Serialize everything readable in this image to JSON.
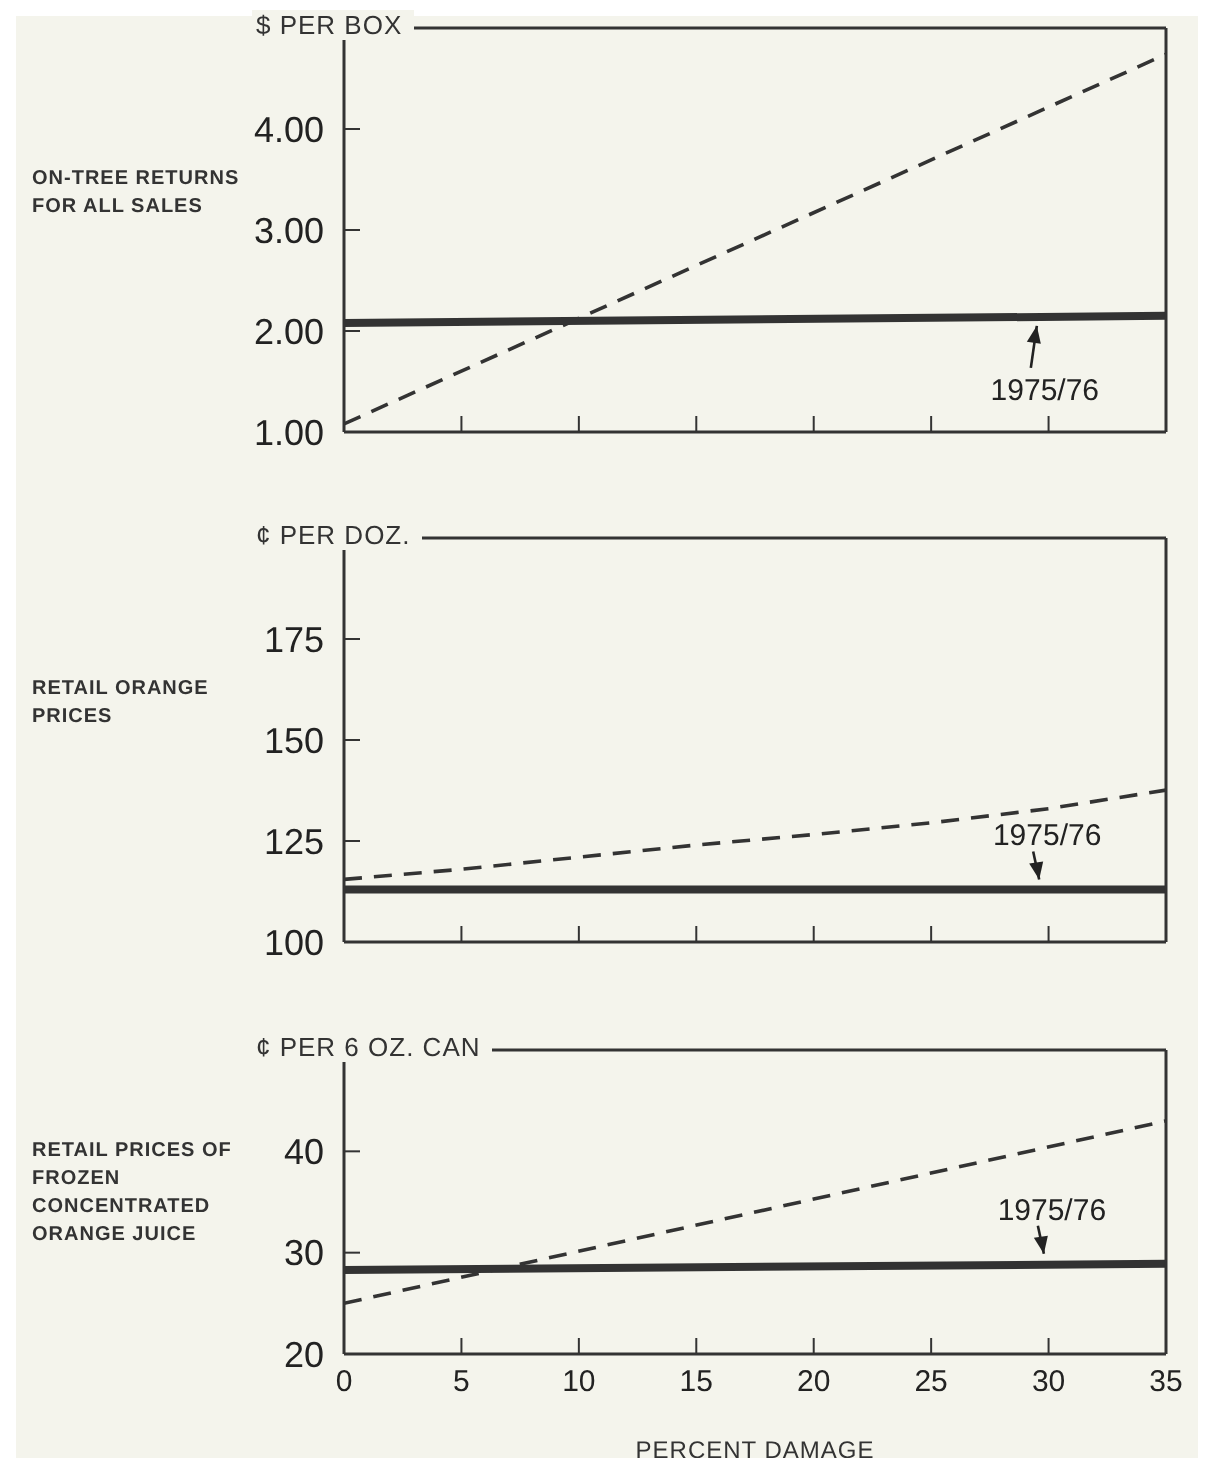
{
  "chart_data": [
    {
      "type": "line",
      "title": "ON-TREE RETURNS FOR ALL SALES",
      "ylabel": "$ PER BOX",
      "xlim": [
        0,
        35
      ],
      "xticks": [
        0,
        5,
        10,
        15,
        20,
        25,
        30,
        35
      ],
      "ylim": [
        1,
        5
      ],
      "yticks": [
        {
          "value": 1,
          "label": "1.00"
        },
        {
          "value": 2,
          "label": "2.00"
        },
        {
          "value": 3,
          "label": "3.00"
        },
        {
          "value": 4,
          "label": "4.00"
        }
      ],
      "tick_labels": "y",
      "grid": false,
      "marker": "none",
      "series": [
        {
          "color": "#333333",
          "line_style": "dashed",
          "x": [
            0,
            35
          ],
          "values": [
            1.08,
            4.74
          ]
        },
        {
          "color": "#333333",
          "line_style": "solid",
          "x": [
            0,
            35
          ],
          "values": [
            2.08,
            2.15
          ]
        }
      ],
      "annotations": [
        {
          "text": "1975/76",
          "x": 29.5,
          "y": 2.15
        }
      ]
    },
    {
      "type": "line",
      "title": "RETAIL ORANGE PRICES",
      "ylabel": "¢ PER DOZ.",
      "xlim": [
        0,
        35
      ],
      "xticks": [
        0,
        5,
        10,
        15,
        20,
        25,
        30,
        35
      ],
      "ylim": [
        100,
        200
      ],
      "yticks": [
        100,
        125,
        150,
        175
      ],
      "tick_labels": "y",
      "grid": false,
      "marker": "none",
      "series": [
        {
          "color": "#333333",
          "line_style": "dashed",
          "x": [
            0,
            5,
            10,
            15,
            20,
            25,
            30,
            35
          ],
          "values": [
            115.5,
            118,
            121,
            124,
            126.6,
            129.5,
            133,
            137.6
          ]
        },
        {
          "color": "#333333",
          "line_style": "solid",
          "x": [
            0,
            35
          ],
          "values": [
            113,
            113
          ]
        }
      ],
      "annotations": [
        {
          "text": "1975/76",
          "x": 29.6,
          "y": 113
        }
      ]
    },
    {
      "type": "line",
      "title": "RETAIL PRICES OF FROZEN CONCENTRATED ORANGE JUICE",
      "ylabel": "¢ PER 6 OZ. CAN",
      "xlabel": "PERCENT DAMAGE",
      "xlim": [
        0,
        35
      ],
      "xticks": [
        0,
        5,
        10,
        15,
        20,
        25,
        30,
        35
      ],
      "ylim": [
        20,
        50
      ],
      "yticks": [
        20,
        30,
        40
      ],
      "grid": false,
      "marker": "none",
      "series": [
        {
          "color": "#333333",
          "line_style": "dashed",
          "x": [
            0,
            35
          ],
          "values": [
            25,
            43
          ]
        },
        {
          "color": "#333333",
          "line_style": "solid",
          "x": [
            0,
            35
          ],
          "values": [
            28.3,
            28.9
          ]
        }
      ],
      "annotations": [
        {
          "text": "1975/76",
          "x": 29.8,
          "y": 28.9
        }
      ]
    }
  ]
}
